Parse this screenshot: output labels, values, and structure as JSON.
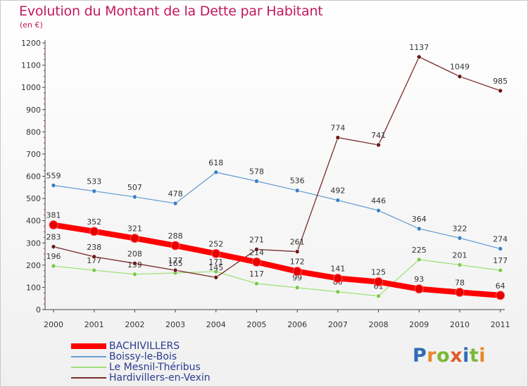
{
  "title": "Evolution du Montant de la Dette par Habitant",
  "unit_label": "(en €)",
  "logo_text": "Proxiti",
  "chart_data": {
    "type": "line",
    "title": "Evolution du Montant de la Dette par Habitant",
    "subtitle": "(en €)",
    "xlabel": "",
    "ylabel": "",
    "categories": [
      "2000",
      "2001",
      "2002",
      "2003",
      "2004",
      "2005",
      "2006",
      "2007",
      "2008",
      "2009",
      "2010",
      "2011"
    ],
    "ylim": [
      0,
      1200
    ],
    "yticks": [
      0,
      100,
      200,
      300,
      400,
      500,
      600,
      700,
      800,
      900,
      1000,
      1100,
      1200
    ],
    "grid": false,
    "legend_position": "bottom-left",
    "series": [
      {
        "name": "BACHIVILLERS",
        "color": "#ff0000",
        "marker": "#e60000",
        "values": [
          381,
          352,
          321,
          288,
          252,
          214,
          172,
          141,
          125,
          93,
          78,
          64
        ]
      },
      {
        "name": "Boissy-le-Bois",
        "color": "#6a9fd4",
        "marker": "#3a7fc2",
        "values": [
          559,
          533,
          507,
          478,
          618,
          578,
          536,
          492,
          446,
          364,
          322,
          274
        ]
      },
      {
        "name": "Le Mesnil-Théribus",
        "color": "#9fe07a",
        "marker": "#79c94b",
        "values": [
          196,
          177,
          159,
          165,
          171,
          117,
          99,
          80,
          61,
          225,
          201,
          177
        ]
      },
      {
        "name": "Hardivillers-en-Vexin",
        "color": "#7a2a2a",
        "marker": "#6a1a1a",
        "values": [
          283,
          238,
          208,
          177,
          145,
          271,
          261,
          774,
          741,
          1137,
          1049,
          985
        ]
      }
    ]
  }
}
